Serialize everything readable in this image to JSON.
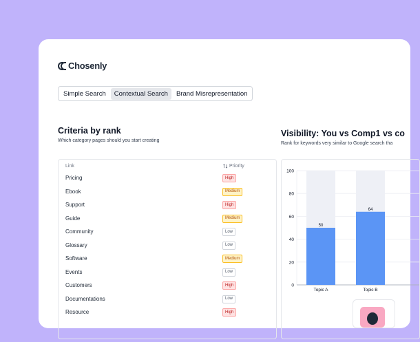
{
  "brand": {
    "name": "Chosenly"
  },
  "tabs": [
    "Simple Search",
    "Contextual Search",
    "Brand Misrepresentation"
  ],
  "active_tab": "Contextual Search",
  "criteria": {
    "title": "Criteria by rank",
    "subtitle": "Which category pages should you start creating",
    "col_link": "Link",
    "col_priority": "Priority",
    "sort_icon": "sort-icon",
    "rows": [
      {
        "label": "Pricing",
        "priority": "High"
      },
      {
        "label": "Ebook",
        "priority": "Medium"
      },
      {
        "label": "Support",
        "priority": "High"
      },
      {
        "label": "Guide",
        "priority": "Medium"
      },
      {
        "label": "Community",
        "priority": "Low"
      },
      {
        "label": "Glossary",
        "priority": "Low"
      },
      {
        "label": "Software",
        "priority": "Medium"
      },
      {
        "label": "Events",
        "priority": "Low"
      },
      {
        "label": "Customers",
        "priority": "High"
      },
      {
        "label": "Documentations",
        "priority": "Low"
      },
      {
        "label": "Resource",
        "priority": "High"
      }
    ]
  },
  "visibility": {
    "title": "Visibility: You vs Comp1 vs co",
    "subtitle": "Rank for keywords very similar to Google search tha"
  },
  "colors": {
    "bar": "#5b95f5",
    "bar_bg": "#eef0f6",
    "high": "#b91c1c",
    "medium": "#b45309",
    "low": "#4b5563"
  },
  "chart_data": {
    "type": "bar",
    "categories": [
      "Topic A",
      "Topic B"
    ],
    "values": [
      50,
      64
    ],
    "data_labels": [
      "50",
      "64"
    ],
    "ylim": [
      0,
      100
    ],
    "yticks": [
      "0",
      "20",
      "40",
      "60",
      "80",
      "100"
    ],
    "xlabel": "",
    "ylabel": "",
    "grid": true
  }
}
